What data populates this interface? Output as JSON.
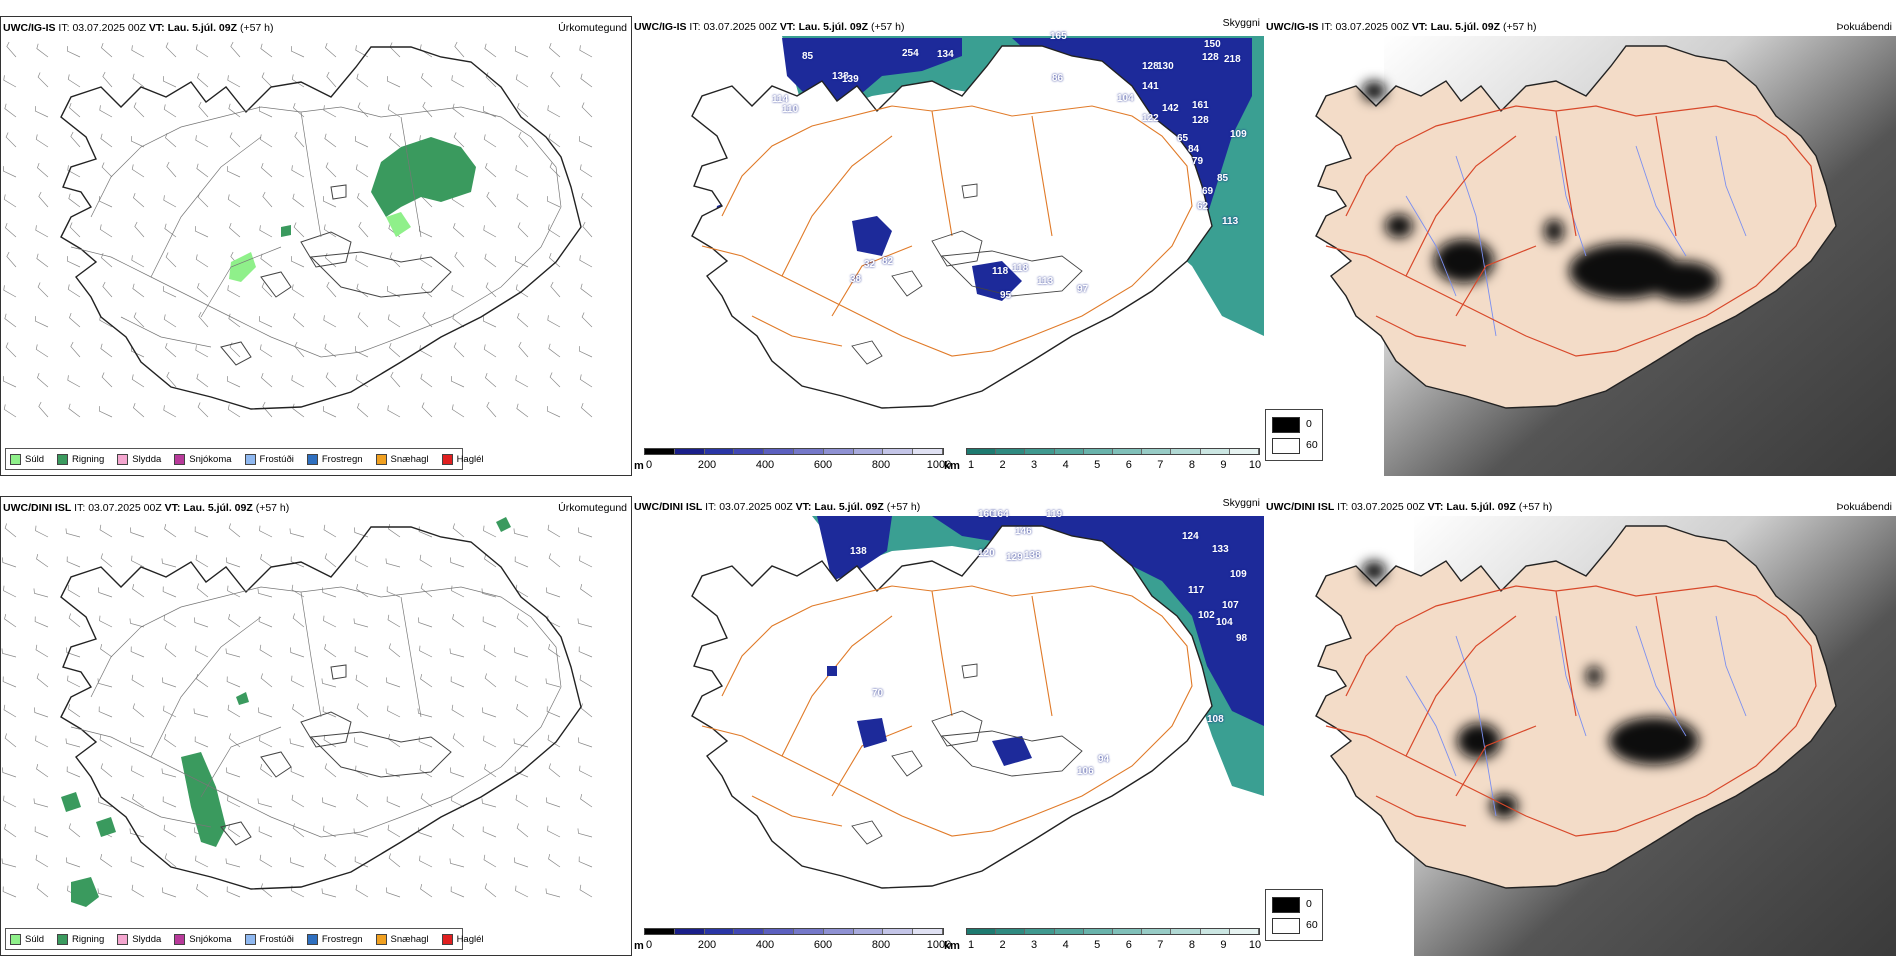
{
  "colors": {
    "coast": "#222222",
    "road": "#e07a28",
    "road_red": "#d8482a",
    "land_fill": "#f3dcc8",
    "river": "#7b8ff0",
    "cloud_blue": "#1d2a9a",
    "fog_teal": "#2f9a8e",
    "rain_green": "#3a9a5e",
    "drizzle_green": "#8ff08a"
  },
  "rows": [
    {
      "model": "UWC/IG-IS",
      "run_label": "IT:",
      "run_time": "03.07.2025 00Z",
      "valid_label": "VT:",
      "valid_time": "Lau. 5.júl. 09Z",
      "lead": "(+57 h)"
    },
    {
      "model": "UWC/DINI ISL",
      "run_label": "IT:",
      "run_time": "03.07.2025 00Z",
      "valid_label": "VT:",
      "valid_time": "Lau. 5.júl. 09Z",
      "lead": "(+57 h)"
    }
  ],
  "panel_titles": {
    "precip_type": "Úrkomutegund",
    "visibility": "Skyggni",
    "fog": "Þokuábendi"
  },
  "precip_legend": [
    {
      "label": "Súld",
      "color": "#8ff08a"
    },
    {
      "label": "Rigning",
      "color": "#3a9a5e"
    },
    {
      "label": "Slydda",
      "color": "#f4a6cf"
    },
    {
      "label": "Snjókoma",
      "color": "#b83a9a"
    },
    {
      "label": "Frostúði",
      "color": "#8fb8f0"
    },
    {
      "label": "Frostregn",
      "color": "#2e6fbf"
    },
    {
      "label": "Snæhagl",
      "color": "#f0a020"
    },
    {
      "label": "Haglél",
      "color": "#e02020"
    }
  ],
  "cloudbase_scale": {
    "unit": "m",
    "ticks": [
      "0",
      "200",
      "400",
      "600",
      "800",
      "1000"
    ],
    "colors": [
      "#000000",
      "#1a1f8a",
      "#2a36a6",
      "#4248b4",
      "#5c60bf",
      "#7578c9",
      "#8f91d3",
      "#a9abdd",
      "#c4c5e8",
      "#e0e1f3"
    ]
  },
  "visibility_scale": {
    "unit": "km",
    "ticks": [
      "1",
      "2",
      "3",
      "4",
      "5",
      "6",
      "7",
      "8",
      "9",
      "10"
    ],
    "colors": [
      "#1e7a70",
      "#2f8a80",
      "#40998f",
      "#54a69d",
      "#69b3ab",
      "#80c0b9",
      "#98ccc6",
      "#b1d9d4",
      "#cbe6e2",
      "#e6f3f1"
    ]
  },
  "fog_scale": {
    "high": "0",
    "low": "60"
  },
  "cloud_labels": {
    "row1": [
      "85",
      "254",
      "134",
      "165",
      "150",
      "218",
      "128",
      "130",
      "128",
      "138",
      "139",
      "86",
      "141",
      "104",
      "161",
      "114",
      "110",
      "142",
      "122",
      "128",
      "109",
      "65",
      "84",
      "79",
      "85",
      "69",
      "62",
      "113",
      "32",
      "82",
      "38",
      "118",
      "118",
      "113",
      "97",
      "95"
    ],
    "row2": [
      "160",
      "164",
      "146",
      "119",
      "124",
      "138",
      "120",
      "129",
      "138",
      "133",
      "109",
      "117",
      "107",
      "102",
      "104",
      "98",
      "70",
      "108",
      "106",
      "94"
    ]
  }
}
